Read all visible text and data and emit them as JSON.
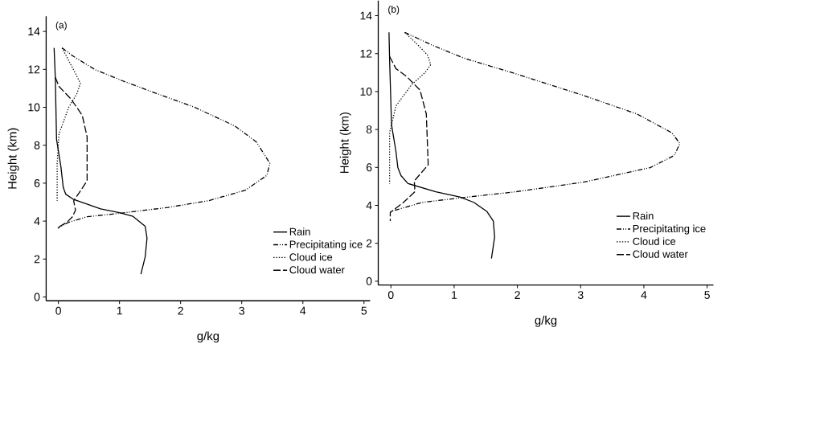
{
  "chart_data": [
    {
      "type": "line",
      "title": "(a)",
      "xlabel": "g/kg",
      "ylabel": "Height (km)",
      "xlim": [
        -0.2,
        5.1
      ],
      "ylim": [
        -0.2,
        14.8
      ],
      "xticks": [
        0,
        1,
        2,
        3,
        4,
        5
      ],
      "yticks": [
        0,
        2,
        4,
        6,
        8,
        10,
        12,
        14
      ],
      "legend": "bottom right",
      "series": [
        {
          "name": "Rain",
          "color": "#000000",
          "line_style": "solid",
          "x": [
            -0.07,
            -0.05,
            -0.03,
            0.04,
            0.08,
            0.12,
            0.25,
            0.69,
            1.0,
            1.22,
            1.42,
            1.45,
            1.42,
            1.35
          ],
          "values": [
            13.13,
            11.55,
            8.31,
            6.9,
            5.77,
            5.42,
            5.14,
            4.65,
            4.44,
            4.25,
            3.73,
            3.1,
            2.11,
            1.2
          ]
        },
        {
          "name": "Precipitating ice",
          "color": "#000000",
          "line_style": "dashdot",
          "x": [
            0.06,
            0.25,
            0.61,
            1.04,
            1.57,
            2.23,
            2.89,
            3.24,
            3.46,
            3.41,
            3.06,
            2.45,
            1.79,
            1.0,
            0.47,
            0.17,
            -0.01
          ],
          "values": [
            13.13,
            12.68,
            11.97,
            11.41,
            10.77,
            10.0,
            9.01,
            8.17,
            7.04,
            6.41,
            5.63,
            5.07,
            4.72,
            4.41,
            4.23,
            3.94,
            3.63
          ]
        },
        {
          "name": "Cloud ice",
          "color": "#000000",
          "line_style": "dotted",
          "x": [
            0.06,
            0.25,
            0.36,
            0.3,
            0.17,
            0.01,
            -0.02,
            -0.02
          ],
          "values": [
            13.13,
            11.97,
            11.27,
            10.7,
            10.0,
            8.59,
            7.04,
            5.07
          ]
        },
        {
          "name": "Cloud water",
          "color": "#000000",
          "line_style": "dashed",
          "x": [
            -0.05,
            0.01,
            0.21,
            0.39,
            0.47,
            0.47,
            0.34,
            0.25,
            0.28,
            0.23,
            0.14,
            -0.01
          ],
          "values": [
            11.58,
            11.1,
            10.42,
            9.58,
            8.45,
            6.13,
            5.49,
            5.07,
            4.58,
            4.23,
            3.94,
            3.66
          ]
        }
      ]
    },
    {
      "type": "line",
      "title": "(b)",
      "xlabel": "g/kg",
      "ylabel": "Height (km)",
      "xlim": [
        -0.2,
        5.1
      ],
      "ylim": [
        -0.2,
        14.8
      ],
      "xticks": [
        0,
        1,
        2,
        3,
        4,
        5
      ],
      "yticks": [
        0,
        2,
        4,
        6,
        8,
        10,
        12,
        14
      ],
      "legend": "bottom right",
      "series": [
        {
          "name": "Rain",
          "color": "#000000",
          "line_style": "solid",
          "x": [
            -0.03,
            -0.02,
            0.01,
            0.08,
            0.11,
            0.16,
            0.27,
            0.71,
            1.09,
            1.31,
            1.52,
            1.62,
            1.64,
            1.59
          ],
          "values": [
            13.12,
            11.64,
            8.25,
            6.84,
            5.99,
            5.57,
            5.15,
            4.72,
            4.44,
            4.16,
            3.67,
            3.17,
            2.33,
            1.2
          ]
        },
        {
          "name": "Precipitating ice",
          "color": "#000000",
          "line_style": "dashdot",
          "x": [
            0.22,
            0.63,
            1.14,
            1.98,
            3.04,
            3.89,
            4.44,
            4.57,
            4.48,
            4.1,
            3.04,
            1.98,
            1.14,
            0.5,
            -0.01
          ],
          "values": [
            13.12,
            12.48,
            11.78,
            10.93,
            9.8,
            8.82,
            7.83,
            7.26,
            6.63,
            5.99,
            5.22,
            4.72,
            4.41,
            4.16,
            3.67
          ]
        },
        {
          "name": "Cloud ice",
          "color": "#000000",
          "line_style": "dotted",
          "x": [
            0.22,
            0.42,
            0.58,
            0.63,
            0.54,
            0.33,
            0.08,
            -0.02,
            -0.02
          ],
          "values": [
            13.12,
            12.48,
            11.92,
            11.42,
            11.0,
            10.37,
            9.24,
            7.83,
            5.15
          ]
        },
        {
          "name": "Cloud water",
          "color": "#000000",
          "line_style": "dashed",
          "x": [
            -0.02,
            0.08,
            0.25,
            0.46,
            0.56,
            0.59,
            0.37,
            0.38,
            0.2,
            -0.01,
            -0.01
          ],
          "values": [
            11.85,
            11.21,
            10.79,
            10.08,
            8.82,
            6.14,
            5.29,
            4.72,
            4.16,
            3.62,
            3.17
          ]
        }
      ]
    }
  ]
}
